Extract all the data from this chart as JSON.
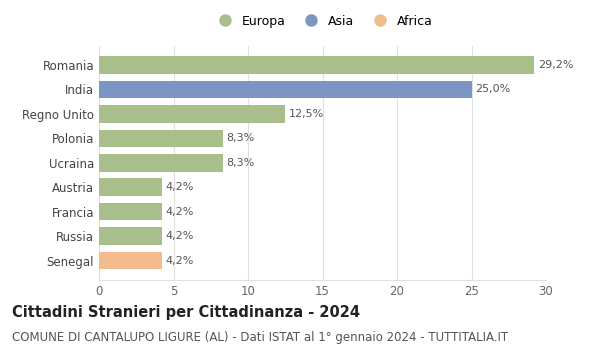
{
  "categories": [
    "Senegal",
    "Russia",
    "Francia",
    "Austria",
    "Ucraina",
    "Polonia",
    "Regno Unito",
    "India",
    "Romania"
  ],
  "values": [
    4.2,
    4.2,
    4.2,
    4.2,
    8.3,
    8.3,
    12.5,
    25.0,
    29.2
  ],
  "labels": [
    "4,2%",
    "4,2%",
    "4,2%",
    "4,2%",
    "8,3%",
    "8,3%",
    "12,5%",
    "25,0%",
    "29,2%"
  ],
  "colors": [
    "#f2bc8d",
    "#a8bf8c",
    "#a8bf8c",
    "#a8bf8c",
    "#a8bf8c",
    "#a8bf8c",
    "#a8bf8c",
    "#7b96c2",
    "#a8bf8c"
  ],
  "legend_labels": [
    "Europa",
    "Asia",
    "Africa"
  ],
  "legend_colors": [
    "#a8bf8c",
    "#7b96c2",
    "#f2bc8d"
  ],
  "xlim": [
    0,
    30
  ],
  "xticks": [
    0,
    5,
    10,
    15,
    20,
    25,
    30
  ],
  "title": "Cittadini Stranieri per Cittadinanza - 2024",
  "subtitle": "COMUNE DI CANTALUPO LIGURE (AL) - Dati ISTAT al 1° gennaio 2024 - TUTTITALIA.IT",
  "title_fontsize": 10.5,
  "subtitle_fontsize": 8.5,
  "label_fontsize": 8,
  "tick_fontsize": 8.5,
  "bar_height": 0.72,
  "background_color": "#ffffff",
  "grid_color": "#e0e0e0"
}
